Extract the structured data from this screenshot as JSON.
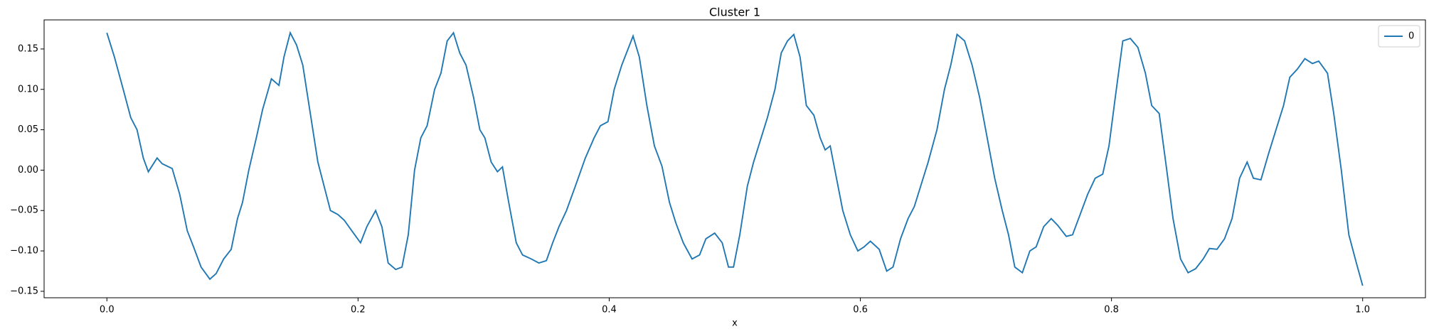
{
  "chart_data": {
    "type": "line",
    "title": "Cluster 1",
    "xlabel": "x",
    "x": [
      0,
      0.006,
      0.013,
      0.019,
      0.024,
      0.029,
      0.033,
      0.04,
      0.044,
      0.052,
      0.058,
      0.064,
      0.069,
      0.075,
      0.082,
      0.087,
      0.093,
      0.099,
      0.104,
      0.108,
      0.113,
      0.119,
      0.124,
      0.131,
      0.137,
      0.141,
      0.146,
      0.151,
      0.156,
      0.162,
      0.168,
      0.173,
      0.178,
      0.184,
      0.189,
      0.195,
      0.202,
      0.207,
      0.214,
      0.219,
      0.224,
      0.23,
      0.235,
      0.24,
      0.245,
      0.25,
      0.255,
      0.261,
      0.266,
      0.271,
      0.276,
      0.281,
      0.286,
      0.292,
      0.297,
      0.301,
      0.306,
      0.311,
      0.315,
      0.32,
      0.326,
      0.331,
      0.338,
      0.344,
      0.35,
      0.355,
      0.36,
      0.366,
      0.373,
      0.381,
      0.388,
      0.393,
      0.399,
      0.404,
      0.41,
      0.415,
      0.419,
      0.424,
      0.43,
      0.436,
      0.442,
      0.448,
      0.453,
      0.459,
      0.466,
      0.472,
      0.477,
      0.484,
      0.49,
      0.495,
      0.499,
      0.504,
      0.51,
      0.515,
      0.521,
      0.526,
      0.532,
      0.537,
      0.542,
      0.547,
      0.552,
      0.557,
      0.563,
      0.568,
      0.572,
      0.576,
      0.581,
      0.586,
      0.592,
      0.598,
      0.603,
      0.608,
      0.615,
      0.621,
      0.626,
      0.632,
      0.638,
      0.643,
      0.648,
      0.654,
      0.661,
      0.667,
      0.672,
      0.677,
      0.683,
      0.689,
      0.695,
      0.701,
      0.707,
      0.713,
      0.718,
      0.723,
      0.729,
      0.735,
      0.74,
      0.746,
      0.752,
      0.757,
      0.764,
      0.769,
      0.775,
      0.781,
      0.787,
      0.793,
      0.798,
      0.803,
      0.809,
      0.815,
      0.821,
      0.827,
      0.832,
      0.838,
      0.844,
      0.849,
      0.855,
      0.861,
      0.867,
      0.873,
      0.878,
      0.884,
      0.89,
      0.896,
      0.902,
      0.908,
      0.913,
      0.919,
      0.925,
      0.931,
      0.937,
      0.942,
      0.948,
      0.954,
      0.96,
      0.965,
      0.972,
      0.977,
      0.983,
      0.989,
      0.995,
      1.0
    ],
    "series": [
      {
        "name": "0",
        "color": "#1f77b4",
        "values": [
          0.17,
          0.14,
          0.1,
          0.065,
          0.05,
          0.015,
          -0.002,
          0.015,
          0.008,
          0.002,
          -0.03,
          -0.075,
          -0.095,
          -0.12,
          -0.135,
          -0.128,
          -0.11,
          -0.098,
          -0.06,
          -0.04,
          0.0,
          0.04,
          0.075,
          0.113,
          0.105,
          0.14,
          0.17,
          0.155,
          0.13,
          0.07,
          0.01,
          -0.02,
          -0.05,
          -0.055,
          -0.062,
          -0.075,
          -0.09,
          -0.07,
          -0.05,
          -0.07,
          -0.115,
          -0.123,
          -0.12,
          -0.08,
          0.0,
          0.04,
          0.055,
          0.1,
          0.12,
          0.16,
          0.17,
          0.145,
          0.13,
          0.09,
          0.05,
          0.04,
          0.01,
          -0.002,
          0.004,
          -0.04,
          -0.09,
          -0.105,
          -0.11,
          -0.115,
          -0.112,
          -0.09,
          -0.07,
          -0.05,
          -0.02,
          0.015,
          0.04,
          0.055,
          0.06,
          0.1,
          0.13,
          0.15,
          0.166,
          0.14,
          0.08,
          0.03,
          0.005,
          -0.04,
          -0.065,
          -0.09,
          -0.11,
          -0.105,
          -0.085,
          -0.078,
          -0.09,
          -0.12,
          -0.12,
          -0.08,
          -0.02,
          0.01,
          0.04,
          0.065,
          0.1,
          0.145,
          0.16,
          0.168,
          0.14,
          0.08,
          0.068,
          0.04,
          0.025,
          0.03,
          -0.01,
          -0.05,
          -0.08,
          -0.1,
          -0.095,
          -0.088,
          -0.098,
          -0.125,
          -0.12,
          -0.085,
          -0.06,
          -0.045,
          -0.02,
          0.01,
          0.05,
          0.1,
          0.13,
          0.168,
          0.16,
          0.13,
          0.09,
          0.04,
          -0.01,
          -0.05,
          -0.08,
          -0.12,
          -0.127,
          -0.1,
          -0.095,
          -0.07,
          -0.06,
          -0.068,
          -0.082,
          -0.08,
          -0.055,
          -0.03,
          -0.01,
          -0.005,
          0.03,
          0.09,
          0.16,
          0.163,
          0.152,
          0.12,
          0.08,
          0.07,
          0.0,
          -0.06,
          -0.11,
          -0.127,
          -0.122,
          -0.11,
          -0.097,
          -0.098,
          -0.085,
          -0.06,
          -0.01,
          0.01,
          -0.01,
          -0.012,
          0.02,
          0.05,
          0.08,
          0.115,
          0.125,
          0.138,
          0.132,
          0.135,
          0.12,
          0.07,
          0.0,
          -0.08,
          -0.115,
          -0.143
        ]
      }
    ],
    "xlim": [
      -0.05,
      1.05
    ],
    "xticks": [
      {
        "value": 0,
        "label": "0.0"
      },
      0.2,
      0.4,
      0.6,
      0.8,
      {
        "value": 1,
        "label": "1.0"
      }
    ],
    "ylim": [
      -0.158,
      0.186
    ],
    "yticks": [
      {
        "value": -0.15,
        "label": "−0.15"
      },
      {
        "value": -0.1,
        "label": "−0.10"
      },
      {
        "value": -0.05,
        "label": "−0.05"
      },
      {
        "value": 0,
        "label": "0.00"
      },
      {
        "value": 0.05,
        "label": "0.05"
      },
      {
        "value": 0.1,
        "label": "0.10"
      },
      {
        "value": 0.15,
        "label": "0.15"
      }
    ],
    "grid": false,
    "legend": "upper right"
  }
}
